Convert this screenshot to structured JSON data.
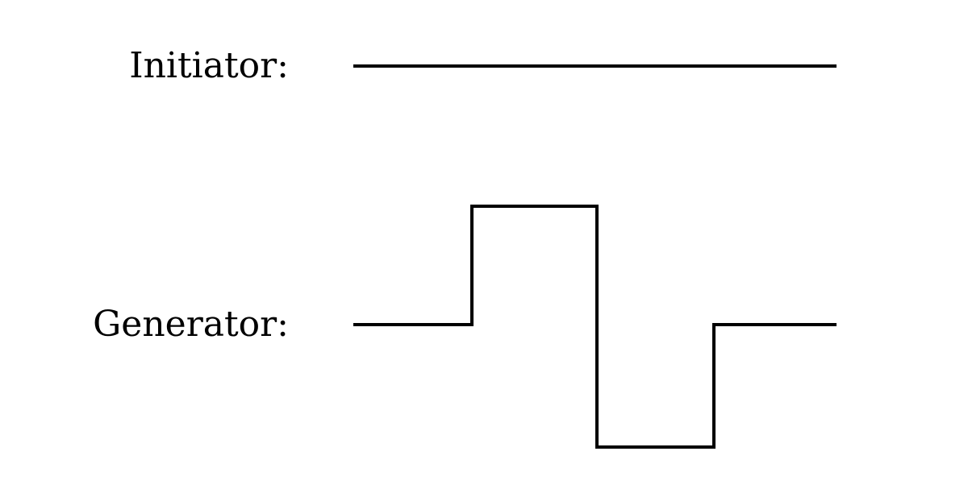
{
  "initiator": {
    "label": "Initiator:"
  },
  "generator": {
    "label": "Generator:"
  },
  "colors": {
    "stroke": "#000000",
    "background": "#ffffff"
  }
}
